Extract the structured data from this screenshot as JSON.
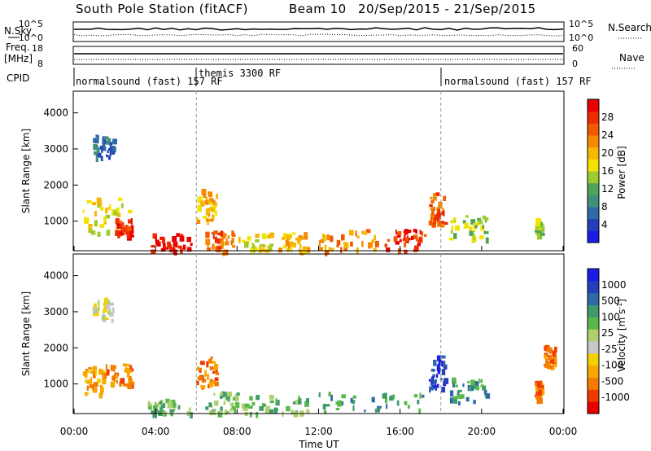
{
  "header": {
    "station": "South Pole Station (fitACF)",
    "beam": "Beam 10",
    "dates": "20/Sep/2015 - 21/Sep/2015"
  },
  "top_panels": {
    "nsky_label": "N.Sky",
    "nsearch_label": "N.Search",
    "noise_left_ticks": [
      "10^5",
      "10^0"
    ],
    "noise_right_ticks": [
      "10^5",
      "10^0"
    ],
    "freq_label": "Freq.",
    "freq_unit": "[MHz]",
    "freq_ticks": [
      "18",
      "8"
    ],
    "nave_label": "Nave",
    "nave_ticks": [
      "60",
      "0"
    ],
    "cpid_label": "CPID",
    "cpid_segments": [
      {
        "name": "normalsound (fast) 157 RF",
        "start_hour": 0
      },
      {
        "name": "themis 3300 RF",
        "start_hour": 6
      },
      {
        "name": "normalsound (fast) 157 RF",
        "start_hour": 18
      }
    ]
  },
  "colorbars": {
    "power": {
      "label": "Power [dB]",
      "ticks": [
        "4",
        "8",
        "12",
        "16",
        "20",
        "24",
        "28"
      ],
      "colors": [
        "#1c1ce6",
        "#2340b8",
        "#2f6aa8",
        "#3f8f7a",
        "#4fa45a",
        "#9ccc30",
        "#f2e400",
        "#f5b800",
        "#f58a00",
        "#f25a00",
        "#ee2a00",
        "#e80000"
      ]
    },
    "velocity": {
      "label": "Velocity [m s",
      "label_sup": "-1",
      "label_end": "]",
      "ticks": [
        "-1000",
        "-500",
        "-100",
        "-25",
        "25",
        "100",
        "500",
        "1000"
      ],
      "colors": [
        "#e80000",
        "#f03a00",
        "#f57a00",
        "#f7a800",
        "#f5d000",
        "#c8c8c8",
        "#b0d070",
        "#5ab84a",
        "#3f9a6a",
        "#2f6aa8",
        "#2340b8",
        "#1c1ce6"
      ]
    }
  },
  "chart_data": [
    {
      "type": "heatmap",
      "panel": "power",
      "ylabel": "Slant Range [km]",
      "ylim": [
        180,
        4600
      ],
      "y_ticks": [
        1000,
        2000,
        3000,
        4000
      ],
      "x_ticks_hours": [
        0,
        4,
        8,
        12,
        16,
        20,
        24
      ],
      "dashed_vlines_hours": [
        6,
        18
      ],
      "regions": [
        {
          "t0": 0.4,
          "t1": 2.8,
          "r0": 700,
          "r1": 1700,
          "level": 6
        },
        {
          "t0": 0.9,
          "t1": 1.9,
          "r0": 2800,
          "r1": 3400,
          "level": 2
        },
        {
          "t0": 2.0,
          "t1": 2.8,
          "r0": 600,
          "r1": 1100,
          "level": 10
        },
        {
          "t0": 3.6,
          "t1": 5.8,
          "r0": 200,
          "r1": 700,
          "level": 11
        },
        {
          "t0": 6.0,
          "t1": 7.0,
          "r0": 1000,
          "r1": 1900,
          "level": 7
        },
        {
          "t0": 6.4,
          "t1": 7.8,
          "r0": 200,
          "r1": 800,
          "level": 9
        },
        {
          "t0": 8.0,
          "t1": 9.6,
          "r0": 200,
          "r1": 700,
          "level": 6
        },
        {
          "t0": 10.0,
          "t1": 11.4,
          "r0": 200,
          "r1": 700,
          "level": 7
        },
        {
          "t0": 12.0,
          "t1": 14.8,
          "r0": 200,
          "r1": 800,
          "level": 8
        },
        {
          "t0": 15.2,
          "t1": 17.2,
          "r0": 200,
          "r1": 800,
          "level": 10
        },
        {
          "t0": 17.4,
          "t1": 18.2,
          "r0": 900,
          "r1": 1800,
          "level": 9
        },
        {
          "t0": 18.4,
          "t1": 20.2,
          "r0": 500,
          "r1": 1200,
          "level": 5
        },
        {
          "t0": 22.6,
          "t1": 22.9,
          "r0": 600,
          "r1": 1100,
          "level": 5
        }
      ]
    },
    {
      "type": "heatmap",
      "panel": "velocity",
      "ylabel": "Slant Range [km]",
      "xlabel": "Time UT",
      "ylim": [
        180,
        4600
      ],
      "y_ticks": [
        1000,
        2000,
        3000,
        4000
      ],
      "x_ticks_hours": [
        0,
        4,
        8,
        12,
        16,
        20,
        24
      ],
      "x_tick_labels": [
        "00:00",
        "04:00",
        "08:00",
        "12:00",
        "16:00",
        "20:00",
        "00:00"
      ],
      "dashed_vlines_hours": [
        6,
        18
      ],
      "regions": [
        {
          "t0": 0.4,
          "t1": 1.4,
          "r0": 700,
          "r1": 1500,
          "level": 3
        },
        {
          "t0": 1.4,
          "t1": 2.8,
          "r0": 1000,
          "r1": 1600,
          "level": 2
        },
        {
          "t0": 0.9,
          "t1": 1.9,
          "r0": 2800,
          "r1": 3400,
          "level": 5
        },
        {
          "t0": 3.6,
          "t1": 5.8,
          "r0": 200,
          "r1": 600,
          "level": 7
        },
        {
          "t0": 6.0,
          "t1": 7.0,
          "r0": 900,
          "r1": 1800,
          "level": 2
        },
        {
          "t0": 6.4,
          "t1": 8.0,
          "r0": 200,
          "r1": 800,
          "level": 7
        },
        {
          "t0": 8.2,
          "t1": 11.4,
          "r0": 200,
          "r1": 700,
          "level": 7
        },
        {
          "t0": 12.0,
          "t1": 17.2,
          "r0": 200,
          "r1": 800,
          "level": 8
        },
        {
          "t0": 17.4,
          "t1": 18.2,
          "r0": 900,
          "r1": 1800,
          "level": 10
        },
        {
          "t0": 18.4,
          "t1": 20.2,
          "r0": 500,
          "r1": 1200,
          "level": 8
        },
        {
          "t0": 22.6,
          "t1": 22.9,
          "r0": 600,
          "r1": 1100,
          "level": 2
        },
        {
          "t0": 23.0,
          "t1": 23.6,
          "r0": 1500,
          "r1": 2200,
          "level": 2
        }
      ]
    }
  ]
}
